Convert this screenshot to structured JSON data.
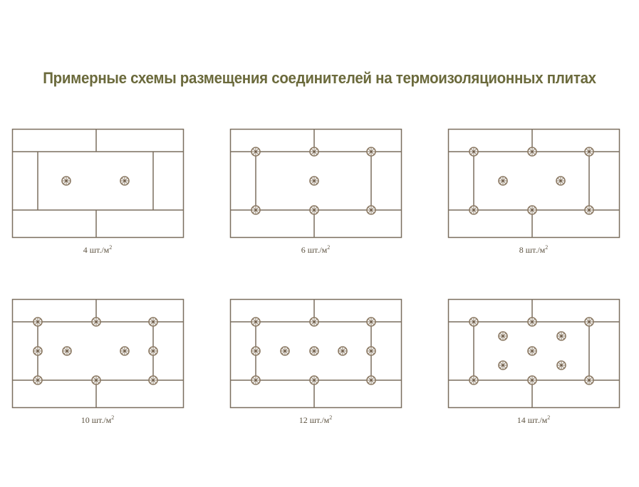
{
  "title": "Примерные схемы размещения соединителей на термоизоляционных плитах",
  "colors": {
    "title": "#6b6a3c",
    "lines": "#7a6e5e",
    "connector": "#8a7862"
  },
  "schemes": [
    {
      "label": "4 шт./м",
      "sup": "2",
      "connectors": 2
    },
    {
      "label": "6 шт./м",
      "sup": "2",
      "connectors": 7
    },
    {
      "label": "8 шт./м",
      "sup": "2",
      "connectors": 8
    },
    {
      "label": "10 шт./м",
      "sup": "2",
      "connectors": 10
    },
    {
      "label": "12 шт./м",
      "sup": "2",
      "connectors": 11
    },
    {
      "label": "14 шт./м",
      "sup": "2",
      "connectors": 11
    }
  ]
}
